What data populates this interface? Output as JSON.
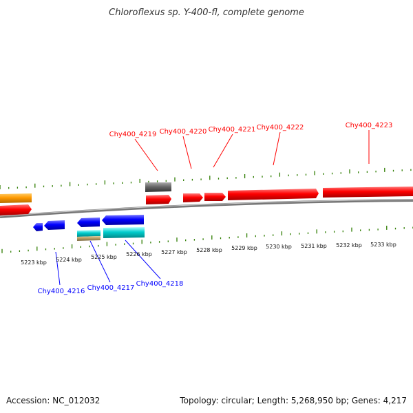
{
  "title": "Chloroflexus sp. Y-400-fl, complete genome",
  "accession": "Accession: NC_012032",
  "summary": "Topology: circular; Length: 5,268,950 bp; Genes: 4,217",
  "colors": {
    "forward": "#ff0000",
    "reverse": "#0000ff",
    "cyan": "#00cccc",
    "orange": "#ff9900",
    "gray": "#666666",
    "tan": "#bba066",
    "tick": "#2e7d00",
    "backbone": "#888888"
  },
  "kbp_labels": [
    "5223 kbp",
    "5224 kbp",
    "5225 kbp",
    "5226 kbp",
    "5227 kbp",
    "5228 kbp",
    "5229 kbp",
    "5230 kbp",
    "5231 kbp",
    "5232 kbp",
    "5233 kbp"
  ],
  "forward_labels": [
    "Chy400_4219",
    "Chy400_4220",
    "Chy400_4221",
    "Chy400_4222",
    "Chy400_4223"
  ],
  "reverse_labels": [
    "Chy400_4216",
    "Chy400_4217",
    "Chy400_4218"
  ]
}
